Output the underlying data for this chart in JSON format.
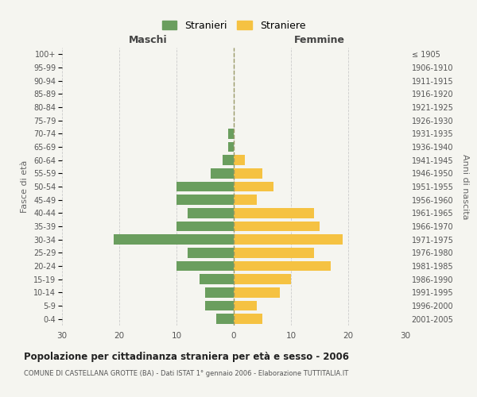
{
  "age_groups": [
    "0-4",
    "5-9",
    "10-14",
    "15-19",
    "20-24",
    "25-29",
    "30-34",
    "35-39",
    "40-44",
    "45-49",
    "50-54",
    "55-59",
    "60-64",
    "65-69",
    "70-74",
    "75-79",
    "80-84",
    "85-89",
    "90-94",
    "95-99",
    "100+"
  ],
  "birth_years": [
    "2001-2005",
    "1996-2000",
    "1991-1995",
    "1986-1990",
    "1981-1985",
    "1976-1980",
    "1971-1975",
    "1966-1970",
    "1961-1965",
    "1956-1960",
    "1951-1955",
    "1946-1950",
    "1941-1945",
    "1936-1940",
    "1931-1935",
    "1926-1930",
    "1921-1925",
    "1916-1920",
    "1911-1915",
    "1906-1910",
    "≤ 1905"
  ],
  "males": [
    3,
    5,
    5,
    6,
    10,
    8,
    21,
    10,
    8,
    10,
    10,
    4,
    2,
    1,
    1,
    0,
    0,
    0,
    0,
    0,
    0
  ],
  "females": [
    5,
    4,
    8,
    10,
    17,
    14,
    19,
    15,
    14,
    4,
    7,
    5,
    2,
    0,
    0,
    0,
    0,
    0,
    0,
    0,
    0
  ],
  "male_color": "#6a9e5e",
  "female_color": "#f5c242",
  "bg_color": "#f5f5f0",
  "grid_color": "#cccccc",
  "title": "Popolazione per cittadinanza straniera per età e sesso - 2006",
  "subtitle": "COMUNE DI CASTELLANA GROTTE (BA) - Dati ISTAT 1° gennaio 2006 - Elaborazione TUTTITALIA.IT",
  "xlabel_left": "Maschi",
  "xlabel_right": "Femmine",
  "ylabel_left": "Fasce di età",
  "ylabel_right": "Anni di nascita",
  "legend_male": "Stranieri",
  "legend_female": "Straniere",
  "xlim": 30,
  "dashed_line_color": "#999966"
}
